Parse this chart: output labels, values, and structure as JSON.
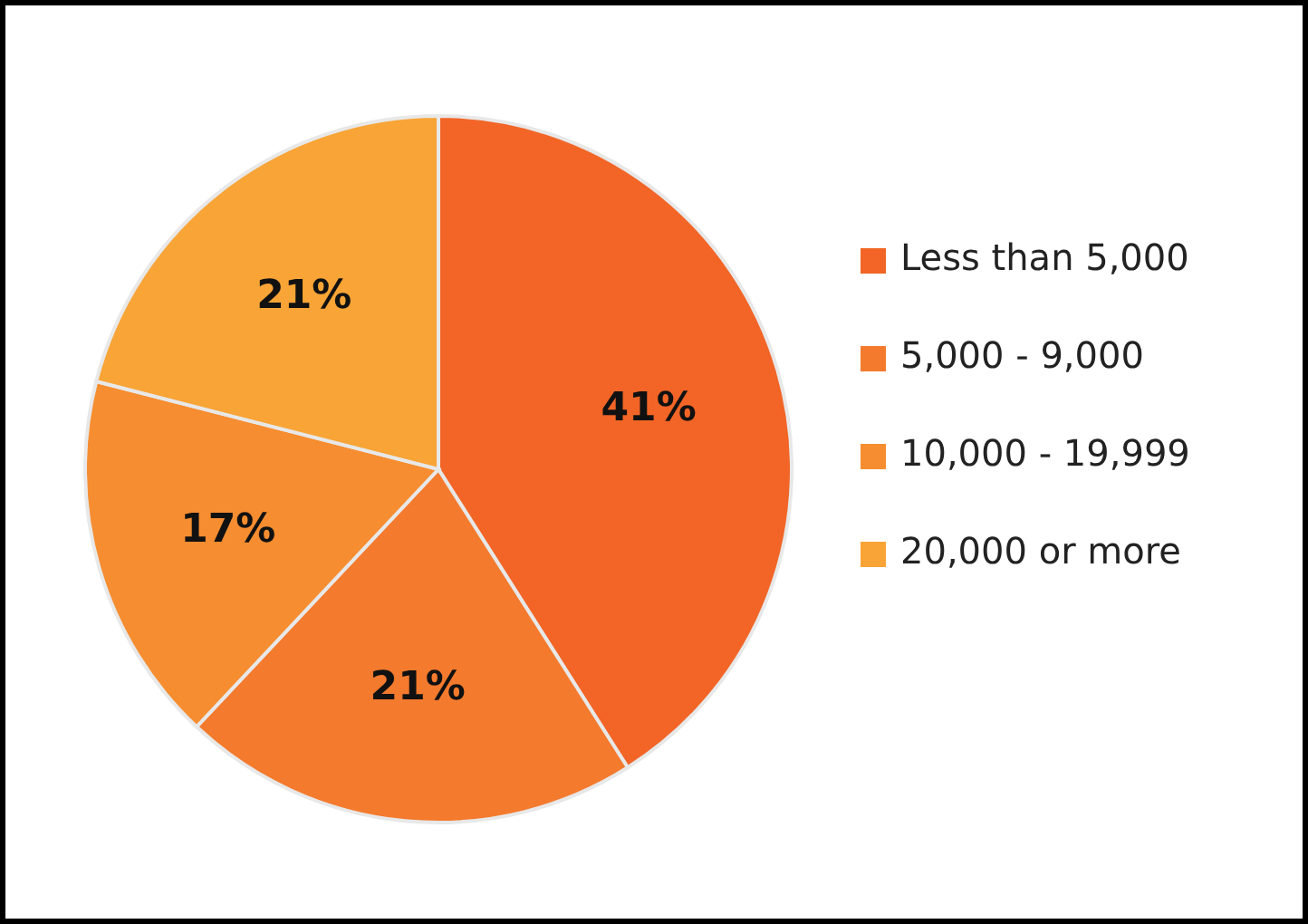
{
  "chart_data": {
    "type": "pie",
    "categories": [
      "Less than 5,000",
      "5,000 - 9,000",
      "10,000 - 19,999",
      "20,000 or more"
    ],
    "values": [
      41,
      21,
      17,
      21
    ],
    "colors": [
      "#f26526",
      "#f47a2d",
      "#f68d30",
      "#f8a436"
    ],
    "value_labels": [
      "41%",
      "21%",
      "17%",
      "21%"
    ],
    "legend": "right"
  }
}
